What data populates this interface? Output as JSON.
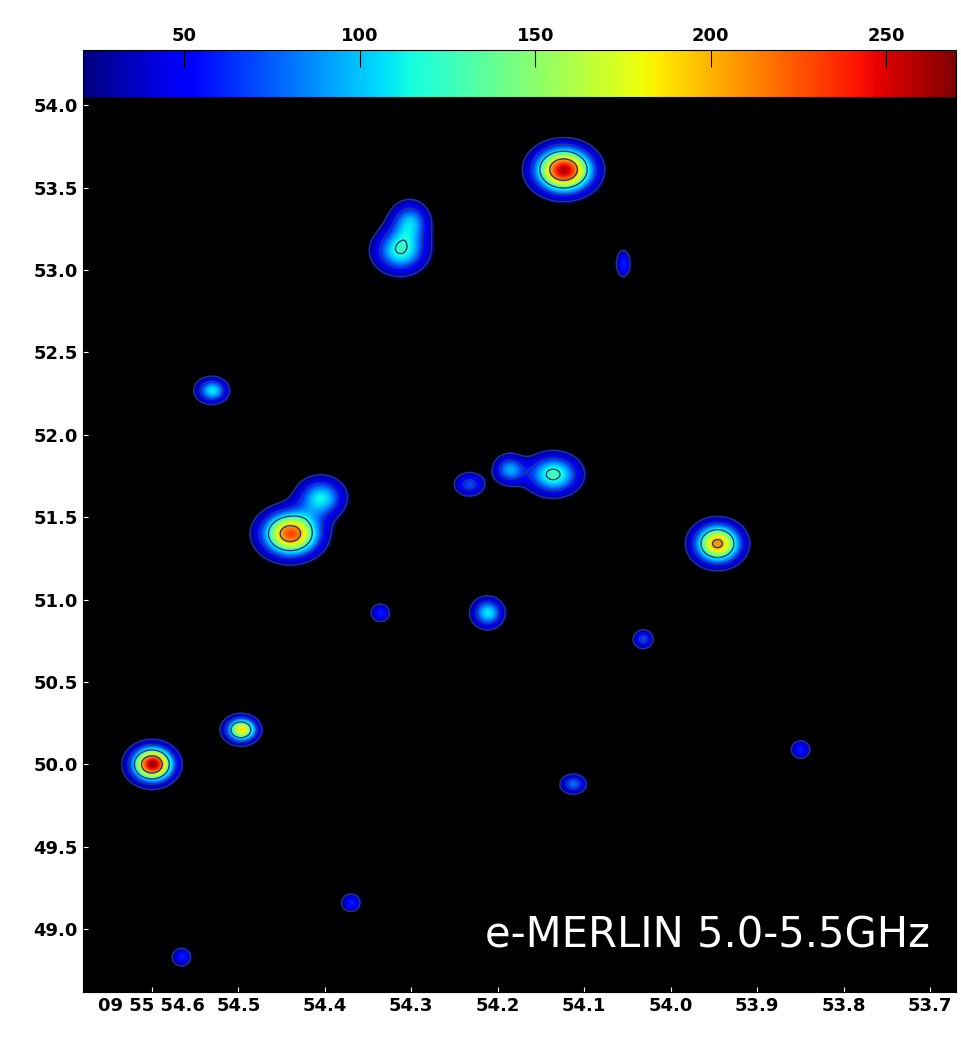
{
  "chart_data": {
    "type": "image",
    "annotation": "e-MERLIN 5.0-5.5GHz",
    "xlim": [
      54.68,
      53.67
    ],
    "ylim": [
      48.62,
      54.05
    ],
    "xticks": [
      {
        "value": 54.6,
        "label": "09 55 54.6"
      },
      54.5,
      54.4,
      54.3,
      54.2,
      54.1,
      54.0,
      53.9,
      53.8,
      53.7
    ],
    "yticks": [
      49.0,
      49.5,
      50.0,
      50.5,
      51.0,
      51.5,
      52.0,
      52.5,
      53.0,
      53.5,
      54.0
    ],
    "colorbar": {
      "range": [
        21,
        270
      ],
      "ticks": [
        50,
        100,
        150,
        200,
        250
      ]
    },
    "contour_levels": [
      25,
      60,
      120,
      200
    ],
    "sources": [
      {
        "x": 54.124,
        "y": 53.61,
        "peak": 260,
        "width": 0.022,
        "height": 0.09
      },
      {
        "x": 54.313,
        "y": 53.12,
        "peak": 120,
        "width": 0.02,
        "height": 0.09
      },
      {
        "x": 54.302,
        "y": 53.3,
        "peak": 90,
        "width": 0.015,
        "height": 0.08
      },
      {
        "x": 54.44,
        "y": 51.4,
        "peak": 230,
        "width": 0.022,
        "height": 0.09
      },
      {
        "x": 54.405,
        "y": 51.62,
        "peak": 110,
        "width": 0.018,
        "height": 0.08
      },
      {
        "x": 53.946,
        "y": 51.34,
        "peak": 210,
        "width": 0.018,
        "height": 0.08
      },
      {
        "x": 54.136,
        "y": 51.76,
        "peak": 130,
        "width": 0.02,
        "height": 0.08
      },
      {
        "x": 54.187,
        "y": 51.79,
        "peak": 90,
        "width": 0.012,
        "height": 0.06
      },
      {
        "x": 54.233,
        "y": 51.7,
        "peak": 70,
        "width": 0.012,
        "height": 0.05
      },
      {
        "x": 54.6,
        "y": 50.0,
        "peak": 265,
        "width": 0.016,
        "height": 0.07
      },
      {
        "x": 54.497,
        "y": 50.21,
        "peak": 190,
        "width": 0.012,
        "height": 0.05
      },
      {
        "x": 54.531,
        "y": 52.27,
        "peak": 110,
        "width": 0.012,
        "height": 0.05
      },
      {
        "x": 54.212,
        "y": 50.92,
        "peak": 110,
        "width": 0.012,
        "height": 0.06
      },
      {
        "x": 54.113,
        "y": 49.88,
        "peak": 80,
        "width": 0.01,
        "height": 0.04
      },
      {
        "x": 54.032,
        "y": 50.76,
        "peak": 70,
        "width": 0.008,
        "height": 0.04
      },
      {
        "x": 54.336,
        "y": 50.92,
        "peak": 60,
        "width": 0.008,
        "height": 0.04
      },
      {
        "x": 54.566,
        "y": 48.83,
        "peak": 60,
        "width": 0.008,
        "height": 0.04
      },
      {
        "x": 54.37,
        "y": 49.16,
        "peak": 60,
        "width": 0.008,
        "height": 0.04
      },
      {
        "x": 53.85,
        "y": 50.09,
        "peak": 60,
        "width": 0.008,
        "height": 0.04
      },
      {
        "x": 54.055,
        "y": 53.04,
        "peak": 60,
        "width": 0.006,
        "height": 0.06
      }
    ]
  }
}
